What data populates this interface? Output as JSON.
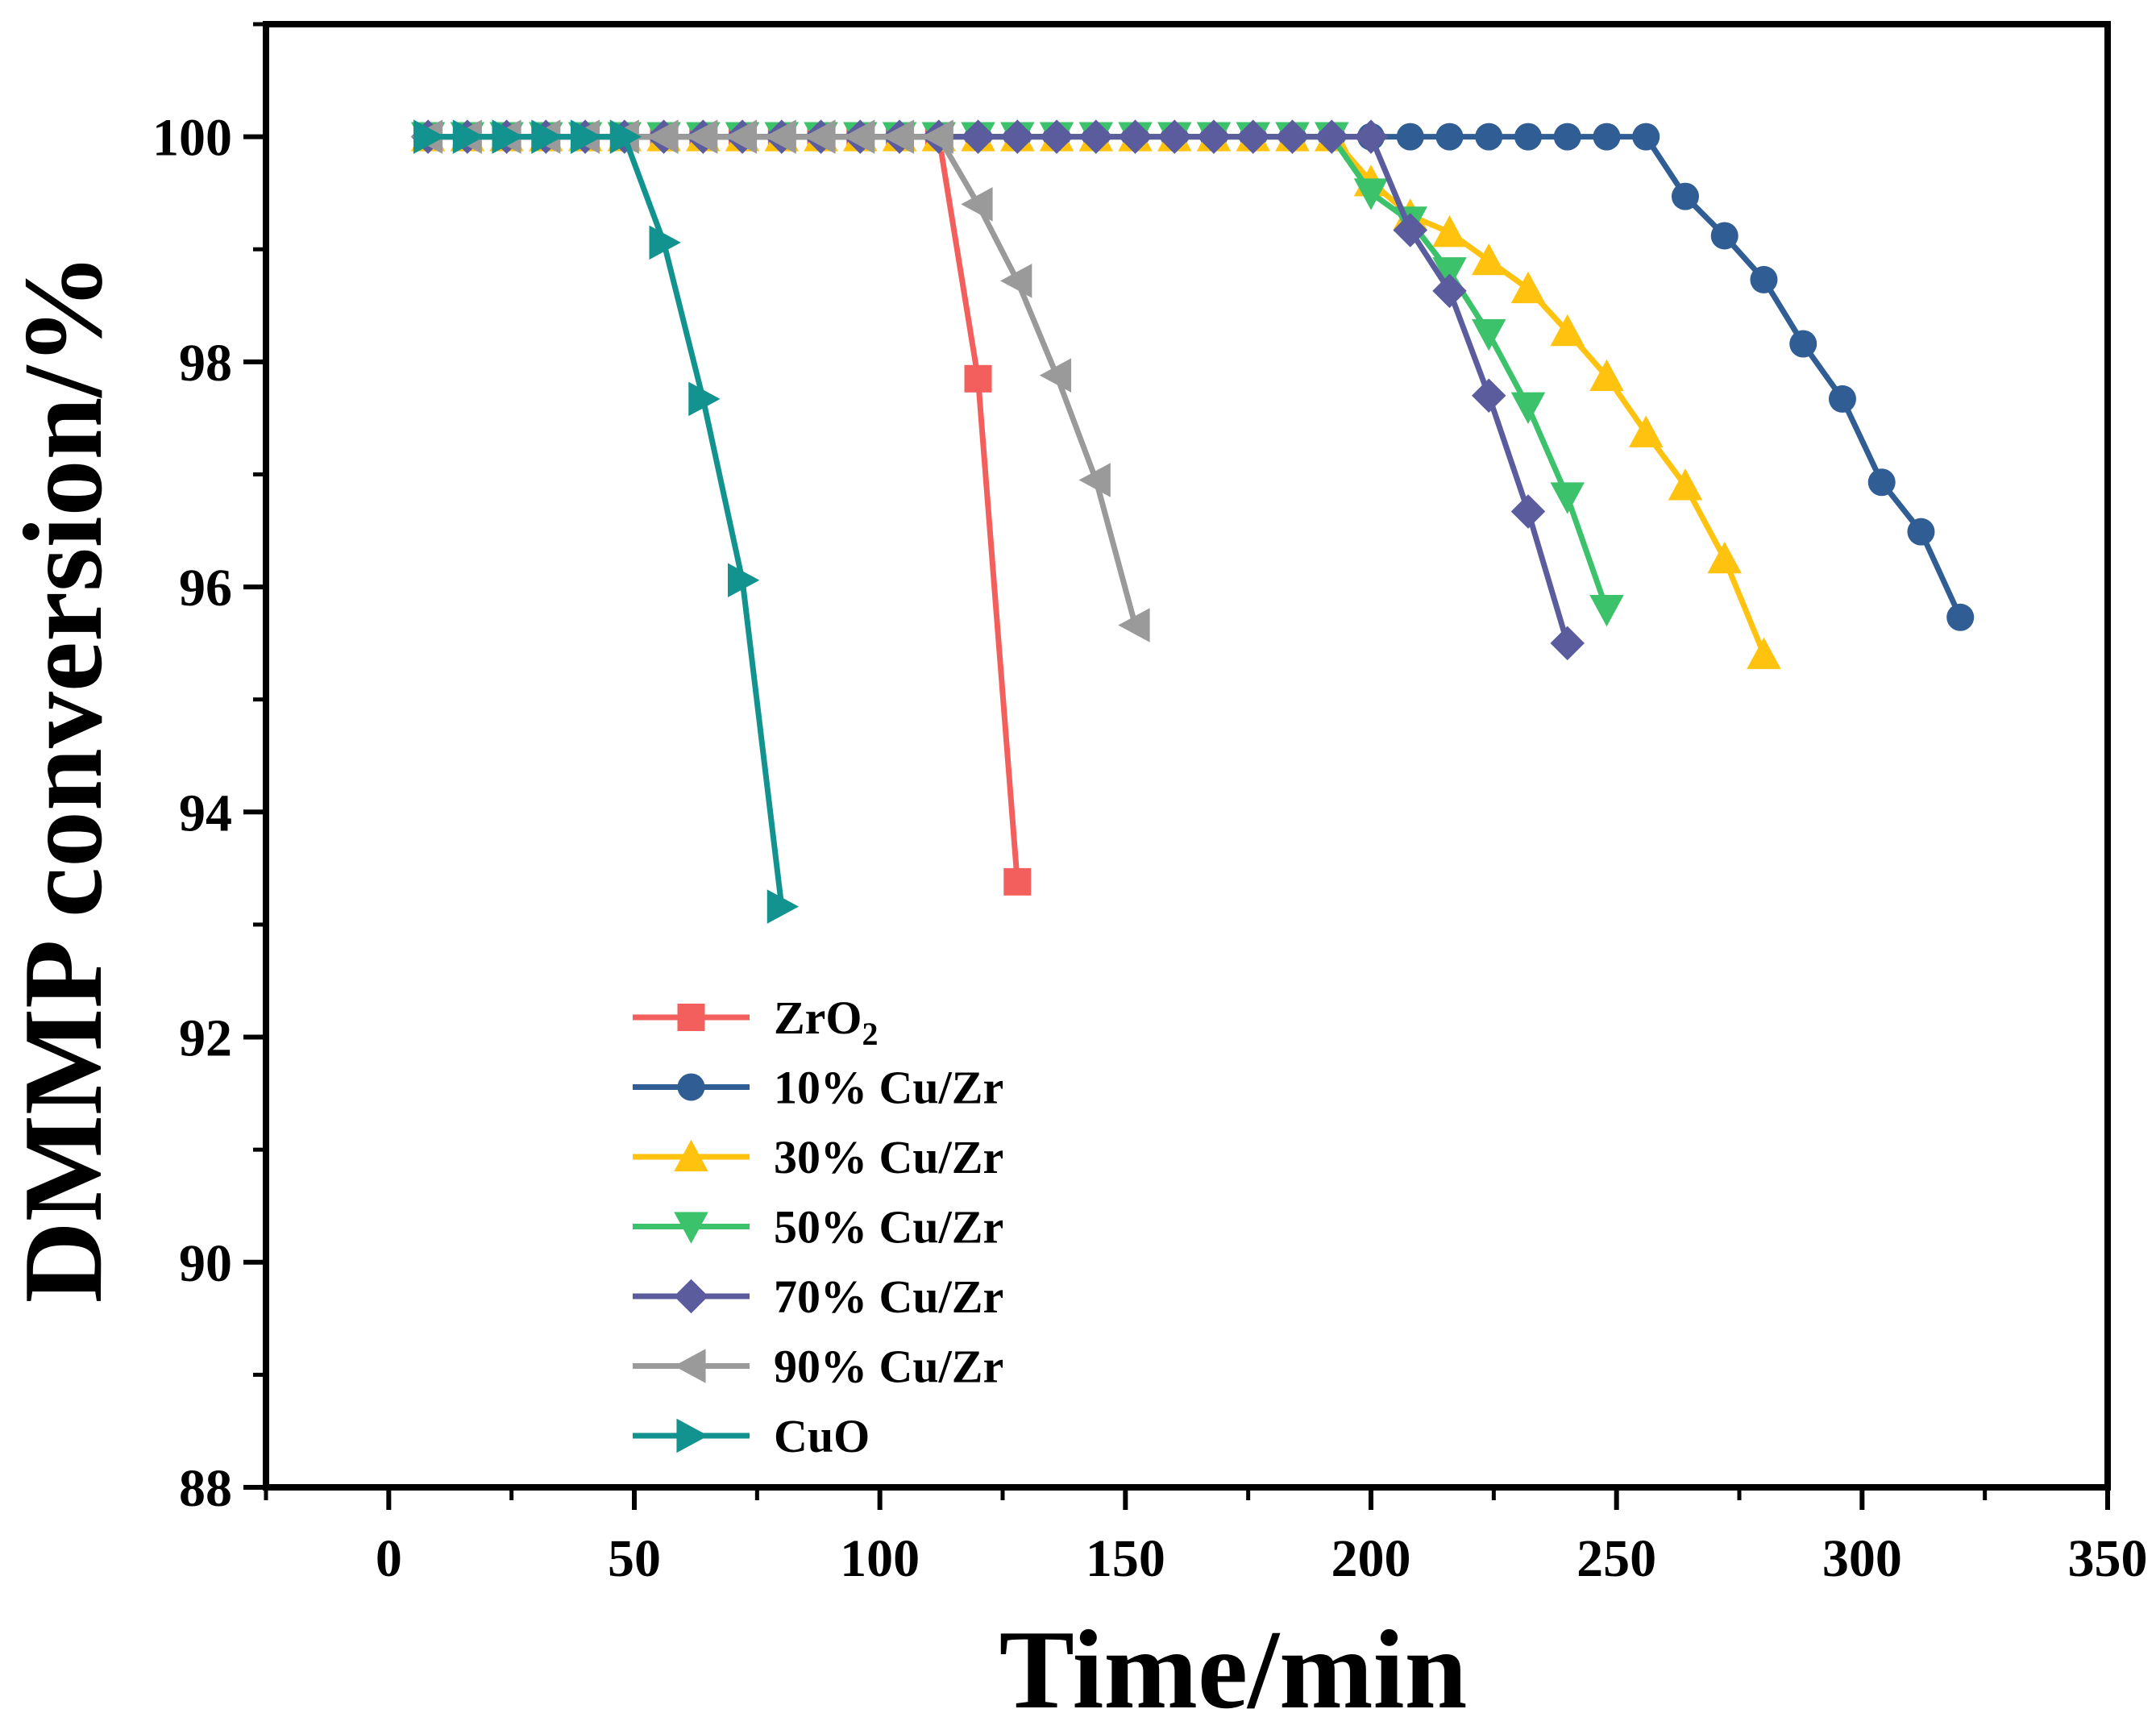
{
  "chart_data": {
    "type": "line",
    "title": "",
    "xlabel": "Time/min",
    "ylabel": "DMMP conversion/%",
    "xlim": [
      -25,
      350
    ],
    "ylim": [
      88,
      101
    ],
    "xticks": [
      0,
      50,
      100,
      150,
      200,
      250,
      300,
      350
    ],
    "yticks": [
      88,
      90,
      92,
      94,
      96,
      98,
      100
    ],
    "grid": false,
    "legend_position": "bottom-left",
    "series": [
      {
        "name": "ZrO",
        "name_subscript": "2",
        "color": "#f25f5c",
        "marker": "square",
        "x": [
          8,
          16,
          24,
          32,
          40,
          48,
          56,
          64,
          72,
          80,
          88,
          96,
          104,
          112,
          120,
          128
        ],
        "y": [
          100,
          100,
          100,
          100,
          100,
          100,
          100,
          100,
          100,
          100,
          100,
          100,
          100,
          100,
          97.85,
          93.38
        ]
      },
      {
        "name": "10% Cu/Zr",
        "color": "#2f5d94",
        "marker": "circle",
        "x": [
          8,
          16,
          24,
          32,
          40,
          48,
          56,
          64,
          72,
          80,
          88,
          96,
          104,
          112,
          120,
          128,
          136,
          144,
          152,
          160,
          168,
          176,
          184,
          192,
          200,
          208,
          216,
          224,
          232,
          240,
          248,
          256,
          264,
          272,
          280,
          288,
          296,
          304,
          312,
          320
        ],
        "y": [
          100,
          100,
          100,
          100,
          100,
          100,
          100,
          100,
          100,
          100,
          100,
          100,
          100,
          100,
          100,
          100,
          100,
          100,
          100,
          100,
          100,
          100,
          100,
          100,
          100,
          100,
          100,
          100,
          100,
          100,
          100,
          100,
          99.47,
          99.12,
          98.73,
          98.16,
          97.67,
          96.93,
          96.49,
          95.73
        ]
      },
      {
        "name": "30% Cu/Zr",
        "color": "#ffc20e",
        "marker": "triangle-up",
        "x": [
          8,
          16,
          24,
          32,
          40,
          48,
          56,
          64,
          72,
          80,
          88,
          96,
          104,
          112,
          120,
          128,
          136,
          144,
          152,
          160,
          168,
          176,
          184,
          192,
          200,
          208,
          216,
          224,
          232,
          240,
          248,
          256,
          264,
          272,
          280
        ],
        "y": [
          100,
          100,
          100,
          100,
          100,
          100,
          100,
          100,
          100,
          100,
          100,
          100,
          100,
          100,
          100,
          100,
          100,
          100,
          100,
          100,
          100,
          100,
          100,
          100,
          99.6,
          99.3,
          99.15,
          98.9,
          98.65,
          98.27,
          97.87,
          97.37,
          96.9,
          96.25,
          95.4
        ]
      },
      {
        "name": "50% Cu/Zr",
        "color": "#3cc26a",
        "marker": "triangle-down",
        "x": [
          8,
          16,
          24,
          32,
          40,
          48,
          56,
          64,
          72,
          80,
          88,
          96,
          104,
          112,
          120,
          128,
          136,
          144,
          152,
          160,
          168,
          176,
          184,
          192,
          200,
          208,
          216,
          224,
          232,
          240,
          248
        ],
        "y": [
          100,
          100,
          100,
          100,
          100,
          100,
          100,
          100,
          100,
          100,
          100,
          100,
          100,
          100,
          100,
          100,
          100,
          100,
          100,
          100,
          100,
          100,
          100,
          100,
          99.5,
          99.25,
          98.8,
          98.25,
          97.6,
          96.8,
          95.8
        ]
      },
      {
        "name": "70% Cu/Zr",
        "color": "#5a5c9e",
        "marker": "diamond",
        "x": [
          8,
          16,
          24,
          32,
          40,
          48,
          56,
          64,
          72,
          80,
          88,
          96,
          104,
          112,
          120,
          128,
          136,
          144,
          152,
          160,
          168,
          176,
          184,
          192,
          200,
          208,
          216,
          224,
          232,
          240
        ],
        "y": [
          100,
          100,
          100,
          100,
          100,
          100,
          100,
          100,
          100,
          100,
          100,
          100,
          100,
          100,
          100,
          100,
          100,
          100,
          100,
          100,
          100,
          100,
          100,
          100,
          100,
          99.17,
          98.63,
          97.7,
          96.67,
          95.5
        ]
      },
      {
        "name": "90% Cu/Zr",
        "color": "#9a9a9a",
        "marker": "triangle-left",
        "x": [
          8,
          16,
          24,
          32,
          40,
          48,
          56,
          64,
          72,
          80,
          88,
          96,
          104,
          112,
          120,
          128,
          136,
          144,
          152
        ],
        "y": [
          100,
          100,
          100,
          100,
          100,
          100,
          100,
          100,
          100,
          100,
          100,
          100,
          100,
          100,
          99.4,
          98.72,
          97.88,
          96.95,
          95.66
        ]
      },
      {
        "name": "CuO",
        "color": "#13938f",
        "marker": "triangle-right",
        "x": [
          8,
          16,
          24,
          32,
          40,
          48,
          56,
          64,
          72,
          80
        ],
        "y": [
          100,
          100,
          100,
          100,
          100,
          100,
          99.06,
          97.67,
          96.06,
          93.16
        ]
      }
    ]
  }
}
